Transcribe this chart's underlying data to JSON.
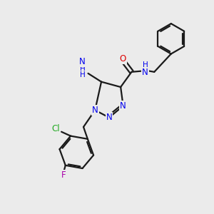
{
  "background_color": "#ebebeb",
  "bond_color": "#1a1a1a",
  "atom_colors": {
    "N": "#0000ee",
    "O": "#dd0000",
    "Cl": "#22aa22",
    "F": "#aa00aa",
    "C": "#1a1a1a",
    "H": "#1a1a1a"
  },
  "figsize": [
    3.0,
    3.0
  ],
  "dpi": 100
}
